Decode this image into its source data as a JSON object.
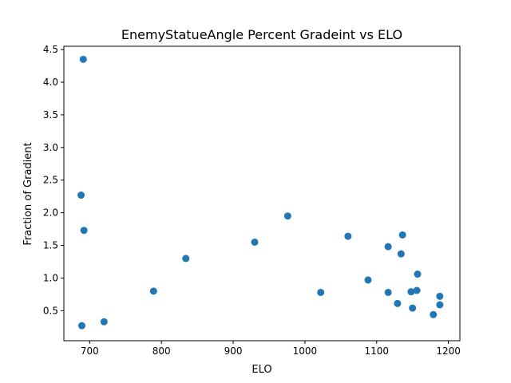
{
  "chart_data": {
    "type": "scatter",
    "title": "EnemyStatueAngle Percent Gradeint vs ELO",
    "xlabel": "ELO",
    "ylabel": "Fraction of Gradient",
    "xlim": [
      664,
      1216
    ],
    "ylim": [
      0.04,
      4.55
    ],
    "xticks": [
      700,
      800,
      900,
      1000,
      1100,
      1200
    ],
    "yticks": [
      0.5,
      1.0,
      1.5,
      2.0,
      2.5,
      3.0,
      3.5,
      4.0,
      4.5
    ],
    "grid": false,
    "color": "#1f77b4",
    "x": [
      691,
      688,
      692,
      689,
      720,
      789,
      834,
      930,
      976,
      1022,
      1060,
      1088,
      1116,
      1116,
      1129,
      1134,
      1136,
      1148,
      1150,
      1156,
      1157,
      1179,
      1188,
      1188
    ],
    "y": [
      4.35,
      2.27,
      1.73,
      0.27,
      0.33,
      0.8,
      1.3,
      1.55,
      1.95,
      0.78,
      1.64,
      0.97,
      1.48,
      0.78,
      0.61,
      1.37,
      1.66,
      0.79,
      0.54,
      0.81,
      1.06,
      0.44,
      0.72,
      0.59
    ]
  }
}
